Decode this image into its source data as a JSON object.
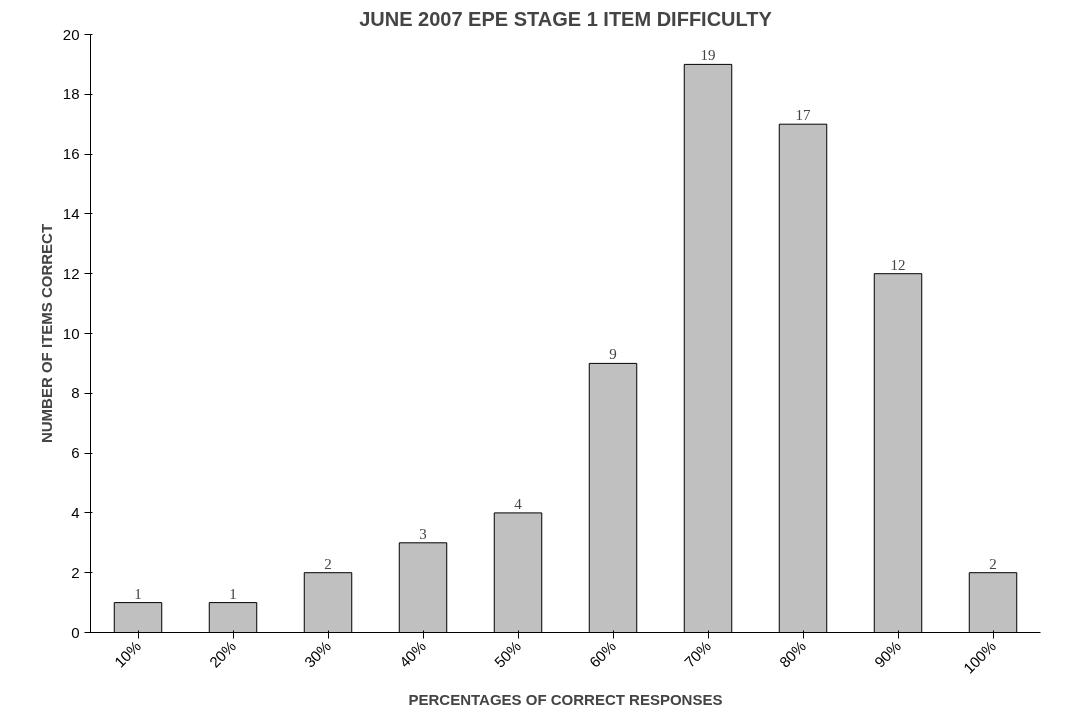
{
  "chart_data": {
    "type": "bar",
    "title": "JUNE 2007 EPE STAGE 1 ITEM DIFFICULTY",
    "xlabel": "PERCENTAGES OF CORRECT RESPONSES",
    "ylabel": "NUMBER OF ITEMS CORRECT",
    "categories": [
      "10%",
      "20%",
      "30%",
      "40%",
      "50%",
      "60%",
      "70%",
      "80%",
      "90%",
      "100%"
    ],
    "values": [
      1,
      1,
      2,
      3,
      4,
      9,
      19,
      17,
      12,
      2
    ],
    "color": "#c0c0c0",
    "ylim": [
      0,
      20
    ],
    "yticks": [
      0,
      2,
      4,
      6,
      8,
      10,
      12,
      14,
      16,
      18,
      20
    ],
    "grid": false,
    "data_labels": true
  }
}
